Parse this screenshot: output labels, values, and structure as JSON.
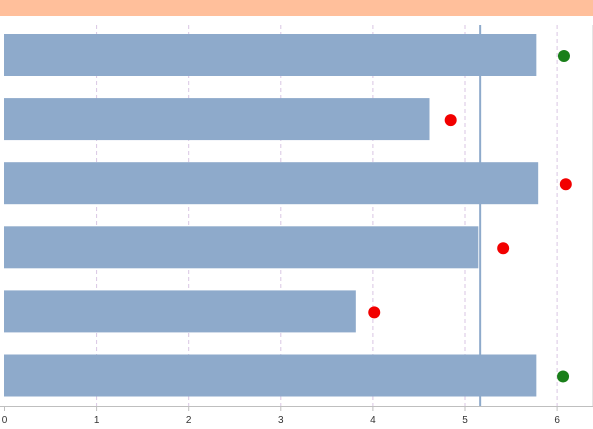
{
  "colors": {
    "header": "#ffbf9b",
    "bar": "#8eaacb",
    "gridline": "#d9c6e3",
    "reference_line": "#8eaacb",
    "axis": "#bfbfbf",
    "tick_text": "#333333",
    "marker_above": "#1a7f1a",
    "marker_below": "#f20000"
  },
  "chart_data": {
    "type": "bar",
    "orientation": "horizontal",
    "xlim": [
      0,
      6.35
    ],
    "xticks": [
      "0",
      "1",
      "2",
      "3",
      "4",
      "5",
      "6"
    ],
    "grid": "vertical dashed",
    "reference_line": 5.17,
    "series": [
      {
        "type": "bar",
        "values": [
          5.78,
          4.62,
          5.8,
          5.15,
          3.82,
          5.78
        ]
      },
      {
        "type": "scatter",
        "values": [
          6.08,
          4.85,
          6.1,
          5.42,
          4.02,
          6.07
        ],
        "colors": [
          "green",
          "red",
          "red",
          "red",
          "red",
          "green"
        ]
      }
    ]
  }
}
